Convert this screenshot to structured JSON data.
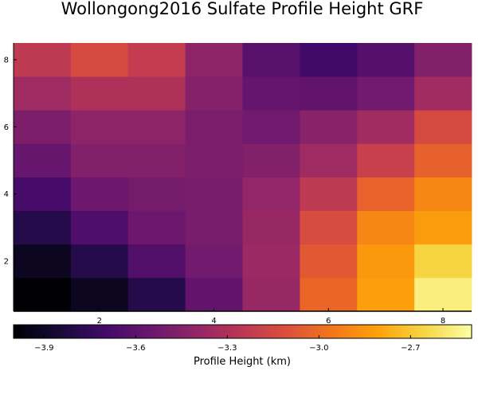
{
  "chart_data": {
    "type": "heatmap",
    "title": "Wollongong2016 Sulfate Profile Height GRF",
    "x": [
      1,
      2,
      3,
      4,
      5,
      6,
      7,
      8
    ],
    "y": [
      1,
      2,
      3,
      4,
      5,
      6,
      7,
      8
    ],
    "xticks": [
      "2",
      "4",
      "6",
      "8"
    ],
    "yticks": [
      "2",
      "4",
      "6",
      "8"
    ],
    "z": [
      [
        -4.0,
        -3.92,
        -3.8,
        -3.58,
        -3.38,
        -3.02,
        -2.82,
        -2.56
      ],
      [
        -3.92,
        -3.8,
        -3.64,
        -3.52,
        -3.37,
        -3.07,
        -2.84,
        -2.66
      ],
      [
        -3.8,
        -3.65,
        -3.54,
        -3.5,
        -3.38,
        -3.13,
        -2.9,
        -2.83
      ],
      [
        -3.68,
        -3.54,
        -3.51,
        -3.5,
        -3.4,
        -3.24,
        -3.03,
        -2.9
      ],
      [
        -3.56,
        -3.46,
        -3.46,
        -3.49,
        -3.46,
        -3.36,
        -3.2,
        -3.04
      ],
      [
        -3.48,
        -3.42,
        -3.42,
        -3.49,
        -3.52,
        -3.44,
        -3.35,
        -3.14
      ],
      [
        -3.36,
        -3.3,
        -3.3,
        -3.45,
        -3.57,
        -3.58,
        -3.52,
        -3.35
      ],
      [
        -3.24,
        -3.14,
        -3.22,
        -3.42,
        -3.62,
        -3.7,
        -3.63,
        -3.46
      ]
    ],
    "colorbar": {
      "label": "Profile Height (km)",
      "range": [
        -4.0,
        -2.5
      ],
      "ticks": [
        -3.9,
        -3.6,
        -3.3,
        -3.0,
        -2.7
      ],
      "tick_labels": [
        "−3.9",
        "−3.6",
        "−3.3",
        "−3.0",
        "−2.7"
      ],
      "colormap": "inferno"
    },
    "grid": false
  }
}
